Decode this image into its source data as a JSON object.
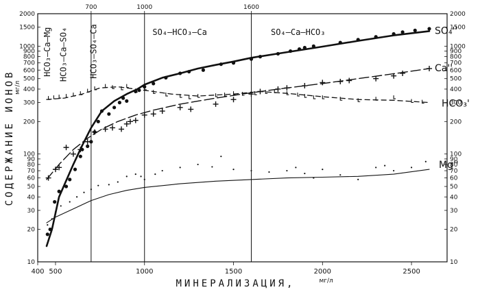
{
  "chart_data": {
    "type": "scatter",
    "title": "",
    "xlabel": "МИНЕРАЛИЗАЦИЯ,",
    "xunit": "мг/л",
    "ylabel": "СОДЕРЖАНИЕ ИОНОВ",
    "yunit": "мг/л",
    "xlim": [
      400,
      2700
    ],
    "ylim": [
      10,
      2000
    ],
    "yscale": "log",
    "grid": false,
    "x_ticks_bottom": [
      {
        "v": 400,
        "label": "400"
      },
      {
        "v": 500,
        "label": "500"
      },
      {
        "v": 1000,
        "label": "1000"
      },
      {
        "v": 1500,
        "label": "1500"
      },
      {
        "v": 2000,
        "label": "2000"
      },
      {
        "v": 2500,
        "label": "2500"
      }
    ],
    "x_ticks_top": [
      {
        "v": 700,
        "label": "700"
      },
      {
        "v": 1000,
        "label": "1000"
      },
      {
        "v": 1600,
        "label": "1600"
      }
    ],
    "y_ticks": [
      {
        "v": 2000,
        "label": "2000"
      },
      {
        "v": 1500,
        "label": "1500"
      },
      {
        "v": 1000,
        "label": "1000"
      },
      {
        "v": 900,
        "label": "900"
      },
      {
        "v": 800,
        "label": "800"
      },
      {
        "v": 700,
        "label": "700"
      },
      {
        "v": 600,
        "label": "600"
      },
      {
        "v": 500,
        "label": "500"
      },
      {
        "v": 400,
        "label": "400"
      },
      {
        "v": 300,
        "label": "300"
      },
      {
        "v": 200,
        "label": "200"
      },
      {
        "v": 100,
        "label": "100"
      },
      {
        "v": 90,
        "label": "90"
      },
      {
        "v": 80,
        "label": "80"
      },
      {
        "v": 70,
        "label": "70"
      },
      {
        "v": 60,
        "label": "60"
      },
      {
        "v": 50,
        "label": "50"
      },
      {
        "v": 40,
        "label": "40"
      },
      {
        "v": 30,
        "label": "30"
      },
      {
        "v": 20,
        "label": "20"
      },
      {
        "v": 10,
        "label": "10"
      }
    ],
    "boundaries": [
      700,
      1000,
      1600
    ],
    "zones": [
      {
        "label": "HCO₃–Ca–Mg",
        "x": 470,
        "y_top": 1500,
        "vertical": true
      },
      {
        "label": "HCO₃–Ca–SO₄",
        "x": 560,
        "y_top": 1500,
        "vertical": true
      },
      {
        "label": "HCO₃–SO₄–Ca",
        "x": 730,
        "y_top": 1600,
        "vertical": true
      },
      {
        "label": "SO₄–HCO₃–Ca",
        "x": 1045,
        "y": 1350,
        "vertical": false
      },
      {
        "label": "SO₄–Ca–HCO₃",
        "x": 1710,
        "y": 1350,
        "vertical": false
      }
    ],
    "series": [
      {
        "name": "SO₄''",
        "marker": "dot",
        "line": "solid-thick",
        "curve": [
          [
            450,
            14
          ],
          [
            480,
            20
          ],
          [
            520,
            40
          ],
          [
            600,
            80
          ],
          [
            650,
            120
          ],
          [
            700,
            175
          ],
          [
            760,
            250
          ],
          [
            830,
            310
          ],
          [
            900,
            360
          ],
          [
            960,
            400
          ],
          [
            1000,
            440
          ],
          [
            1100,
            510
          ],
          [
            1200,
            560
          ],
          [
            1300,
            620
          ],
          [
            1400,
            670
          ],
          [
            1500,
            720
          ],
          [
            1600,
            780
          ],
          [
            1800,
            880
          ],
          [
            2000,
            990
          ],
          [
            2200,
            1120
          ],
          [
            2400,
            1260
          ],
          [
            2600,
            1380
          ]
        ],
        "points": [
          [
            455,
            18
          ],
          [
            470,
            20
          ],
          [
            495,
            36
          ],
          [
            520,
            45
          ],
          [
            560,
            50
          ],
          [
            580,
            58
          ],
          [
            610,
            72
          ],
          [
            640,
            95
          ],
          [
            650,
            110
          ],
          [
            680,
            118
          ],
          [
            700,
            130
          ],
          [
            720,
            160
          ],
          [
            740,
            200
          ],
          [
            760,
            250
          ],
          [
            800,
            235
          ],
          [
            830,
            270
          ],
          [
            860,
            300
          ],
          [
            880,
            330
          ],
          [
            900,
            310
          ],
          [
            950,
            380
          ],
          [
            970,
            390
          ],
          [
            1000,
            420
          ],
          [
            1050,
            450
          ],
          [
            1120,
            510
          ],
          [
            1200,
            560
          ],
          [
            1250,
            580
          ],
          [
            1330,
            600
          ],
          [
            1430,
            680
          ],
          [
            1500,
            700
          ],
          [
            1600,
            760
          ],
          [
            1650,
            800
          ],
          [
            1750,
            850
          ],
          [
            1820,
            900
          ],
          [
            1870,
            940
          ],
          [
            1900,
            970
          ],
          [
            1950,
            1000
          ],
          [
            2100,
            1080
          ],
          [
            2200,
            1150
          ],
          [
            2300,
            1220
          ],
          [
            2400,
            1300
          ],
          [
            2450,
            1350
          ],
          [
            2520,
            1400
          ],
          [
            2600,
            1450
          ]
        ]
      },
      {
        "name": "Ca''",
        "marker": "plus",
        "line": "long-dash",
        "curve": [
          [
            450,
            58
          ],
          [
            520,
            80
          ],
          [
            600,
            110
          ],
          [
            680,
            140
          ],
          [
            760,
            170
          ],
          [
            850,
            200
          ],
          [
            950,
            230
          ],
          [
            1050,
            255
          ],
          [
            1200,
            290
          ],
          [
            1400,
            330
          ],
          [
            1600,
            370
          ],
          [
            1800,
            410
          ],
          [
            2000,
            450
          ],
          [
            2200,
            500
          ],
          [
            2400,
            555
          ],
          [
            2600,
            620
          ]
        ],
        "points": [
          [
            460,
            60
          ],
          [
            500,
            72
          ],
          [
            520,
            75
          ],
          [
            560,
            115
          ],
          [
            600,
            100
          ],
          [
            640,
            110
          ],
          [
            680,
            130
          ],
          [
            720,
            160
          ],
          [
            780,
            170
          ],
          [
            820,
            175
          ],
          [
            870,
            170
          ],
          [
            900,
            190
          ],
          [
            920,
            200
          ],
          [
            950,
            205
          ],
          [
            1000,
            230
          ],
          [
            1050,
            235
          ],
          [
            1100,
            250
          ],
          [
            1200,
            270
          ],
          [
            1260,
            260
          ],
          [
            1400,
            290
          ],
          [
            1500,
            320
          ],
          [
            1600,
            360
          ],
          [
            1650,
            380
          ],
          [
            1750,
            400
          ],
          [
            1800,
            410
          ],
          [
            1900,
            430
          ],
          [
            2000,
            460
          ],
          [
            2100,
            470
          ],
          [
            2150,
            480
          ],
          [
            2300,
            500
          ],
          [
            2400,
            530
          ],
          [
            2450,
            560
          ],
          [
            2600,
            620
          ]
        ]
      },
      {
        "name": "HCO₃'",
        "marker": "tick",
        "line": "dashed",
        "curve": [
          [
            450,
            320
          ],
          [
            550,
            330
          ],
          [
            650,
            360
          ],
          [
            750,
            410
          ],
          [
            850,
            420
          ],
          [
            950,
            400
          ],
          [
            1050,
            380
          ],
          [
            1150,
            360
          ],
          [
            1300,
            345
          ],
          [
            1500,
            360
          ],
          [
            1650,
            380
          ],
          [
            1800,
            365
          ],
          [
            2000,
            340
          ],
          [
            2200,
            320
          ],
          [
            2400,
            315
          ],
          [
            2600,
            300
          ]
        ],
        "points": [
          [
            460,
            325
          ],
          [
            490,
            330
          ],
          [
            520,
            335
          ],
          [
            560,
            340
          ],
          [
            600,
            350
          ],
          [
            640,
            360
          ],
          [
            680,
            380
          ],
          [
            720,
            400
          ],
          [
            780,
            420
          ],
          [
            820,
            410
          ],
          [
            870,
            400
          ],
          [
            900,
            420
          ],
          [
            950,
            380
          ],
          [
            1000,
            400
          ],
          [
            1050,
            370
          ],
          [
            1120,
            350
          ],
          [
            1200,
            340
          ],
          [
            1250,
            330
          ],
          [
            1300,
            340
          ],
          [
            1400,
            345
          ],
          [
            1450,
            350
          ],
          [
            1500,
            360
          ],
          [
            1550,
            355
          ],
          [
            1620,
            360
          ],
          [
            1680,
            370
          ],
          [
            1730,
            375
          ],
          [
            1800,
            360
          ],
          [
            1860,
            350
          ],
          [
            1900,
            340
          ],
          [
            1950,
            330
          ],
          [
            2000,
            330
          ],
          [
            2100,
            320
          ],
          [
            2200,
            310
          ],
          [
            2300,
            320
          ],
          [
            2400,
            330
          ],
          [
            2500,
            305
          ],
          [
            2560,
            300
          ]
        ]
      },
      {
        "name": "Mg''",
        "marker": "small-dot",
        "line": "solid-thin",
        "curve": [
          [
            450,
            23
          ],
          [
            500,
            26
          ],
          [
            600,
            31
          ],
          [
            700,
            37
          ],
          [
            800,
            42
          ],
          [
            900,
            46
          ],
          [
            1000,
            49
          ],
          [
            1200,
            53
          ],
          [
            1400,
            56
          ],
          [
            1600,
            58
          ],
          [
            1800,
            60
          ],
          [
            2000,
            61
          ],
          [
            2200,
            62
          ],
          [
            2400,
            65
          ],
          [
            2600,
            72
          ]
        ],
        "points": [
          [
            455,
            22
          ],
          [
            480,
            25
          ],
          [
            500,
            29
          ],
          [
            530,
            33
          ],
          [
            580,
            36
          ],
          [
            620,
            40
          ],
          [
            660,
            44
          ],
          [
            700,
            47
          ],
          [
            740,
            51
          ],
          [
            800,
            52
          ],
          [
            850,
            55
          ],
          [
            900,
            62
          ],
          [
            950,
            65
          ],
          [
            980,
            62
          ],
          [
            1000,
            58
          ],
          [
            1060,
            65
          ],
          [
            1100,
            70
          ],
          [
            1200,
            75
          ],
          [
            1300,
            80
          ],
          [
            1380,
            76
          ],
          [
            1430,
            95
          ],
          [
            1500,
            72
          ],
          [
            1600,
            70
          ],
          [
            1700,
            68
          ],
          [
            1800,
            70
          ],
          [
            1850,
            75
          ],
          [
            1900,
            66
          ],
          [
            1950,
            60
          ],
          [
            2000,
            72
          ],
          [
            2100,
            64
          ],
          [
            2200,
            58
          ],
          [
            2300,
            75
          ],
          [
            2350,
            78
          ],
          [
            2400,
            70
          ],
          [
            2500,
            75
          ],
          [
            2580,
            85
          ]
        ]
      }
    ]
  }
}
